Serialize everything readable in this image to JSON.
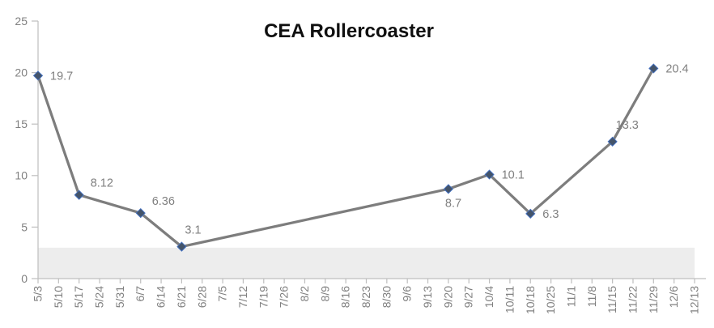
{
  "chart_data": {
    "type": "line",
    "title": "CEA Rollercoaster",
    "x_categories": [
      "5/3",
      "5/10",
      "5/17",
      "5/24",
      "5/31",
      "6/7",
      "6/14",
      "6/21",
      "6/28",
      "7/5",
      "7/12",
      "7/19",
      "7/26",
      "8/2",
      "8/9",
      "8/16",
      "8/23",
      "8/30",
      "9/6",
      "9/13",
      "9/20",
      "9/27",
      "10/4",
      "10/11",
      "10/18",
      "10/25",
      "11/1",
      "11/8",
      "11/15",
      "11/22",
      "11/29",
      "12/6",
      "12/13"
    ],
    "y_ticks": [
      "0",
      "5",
      "10",
      "15",
      "20",
      "25"
    ],
    "ylim": [
      0,
      25
    ],
    "grid": false,
    "legend": "none",
    "band": {
      "from": 0,
      "to": 3
    },
    "series": [
      {
        "name": "CEA",
        "points": [
          {
            "x": "5/3",
            "value": 19.7,
            "label": "19.7",
            "label_pos": "right"
          },
          {
            "x": "5/17",
            "value": 8.12,
            "label": "8.12",
            "label_pos": "above-right"
          },
          {
            "x": "6/7",
            "value": 6.36,
            "label": "6.36",
            "label_pos": "above-right"
          },
          {
            "x": "6/21",
            "value": 3.1,
            "label": "3.1",
            "label_pos": "above"
          },
          {
            "x": "9/20",
            "value": 8.7,
            "label": "8.7",
            "label_pos": "below"
          },
          {
            "x": "10/4",
            "value": 10.1,
            "label": "10.1",
            "label_pos": "right"
          },
          {
            "x": "10/18",
            "value": 6.3,
            "label": "6.3",
            "label_pos": "right"
          },
          {
            "x": "11/15",
            "value": 13.3,
            "label": "13.3",
            "label_pos": "above"
          },
          {
            "x": "11/29",
            "value": 20.4,
            "label": "20.4",
            "label_pos": "right"
          }
        ]
      }
    ],
    "colors": {
      "line": "#7d7d7d",
      "marker_fill": "#44546a",
      "marker_stroke": "#4472c4",
      "data_label": "#808080",
      "tick_label": "#808080",
      "axis": "#bfbfbf",
      "band": "#ededed",
      "title": "#0f0f0f",
      "background": "#ffffff"
    }
  }
}
